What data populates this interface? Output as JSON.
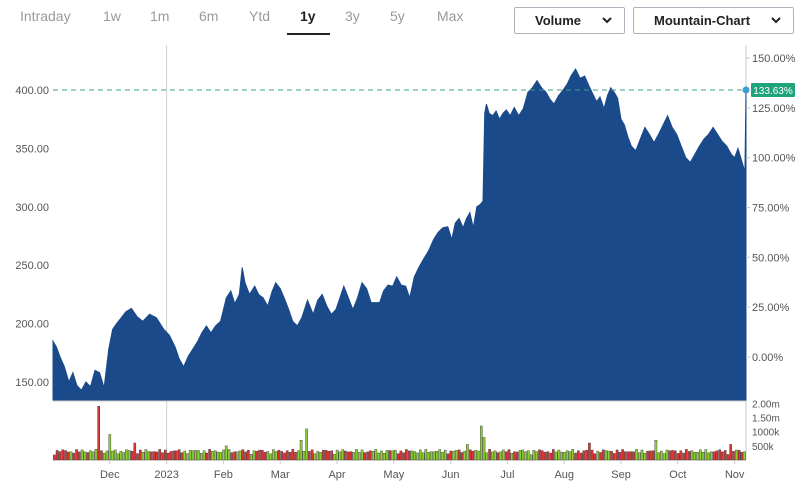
{
  "tabs": [
    {
      "label": "Intraday"
    },
    {
      "label": "1w"
    },
    {
      "label": "1m"
    },
    {
      "label": "6m"
    },
    {
      "label": "Ytd"
    },
    {
      "label": "1y",
      "active": true
    },
    {
      "label": "3y"
    },
    {
      "label": "5y"
    },
    {
      "label": "Max"
    }
  ],
  "controls": {
    "volume_label": "Volume",
    "chart_type_label": "Mountain-Chart"
  },
  "colors": {
    "area": "#1a4a8a",
    "last_marker": "#1fa37a",
    "volume_up": "#8ccf33",
    "volume_down": "#d93434",
    "dashed": "#3aa387"
  },
  "chart_data": {
    "type": "area",
    "title": "",
    "xlabel": "",
    "ylabel": "",
    "x_tick_labels": [
      "Dec",
      "2023",
      "Feb",
      "Mar",
      "Apr",
      "May",
      "Jun",
      "Jul",
      "Aug",
      "Sep",
      "Oct",
      "Nov"
    ],
    "x_tick_months": [
      1,
      2,
      3,
      4,
      5,
      6,
      7,
      8,
      9,
      10,
      11,
      12
    ],
    "x_range_months": [
      0,
      12.2
    ],
    "y_ticks": [
      "150.00",
      "200.00",
      "250.00",
      "300.00",
      "350.00",
      "400.00"
    ],
    "y_tick_values": [
      150,
      200,
      250,
      300,
      350,
      400
    ],
    "ylim": [
      135,
      430
    ],
    "pct_ticks": [
      "0.00%",
      "25.00%",
      "50.00%",
      "75.00%",
      "100.00%",
      "125.00%",
      "150.00%"
    ],
    "pct_tick_values": [
      0,
      25,
      50,
      75,
      100,
      125,
      150
    ],
    "last_value_pct": "133.63%",
    "last_value": 400,
    "volume_ticks": [
      "500k",
      "1000k",
      "1.50m",
      "2.00m"
    ],
    "volume_tick_values": [
      500000,
      1000000,
      1500000,
      2000000
    ],
    "volume_max": 2050000,
    "series": [
      {
        "values": [
          [
            0.0,
            185
          ],
          [
            0.06,
            180
          ],
          [
            0.12,
            172
          ],
          [
            0.2,
            163
          ],
          [
            0.28,
            150
          ],
          [
            0.35,
            158
          ],
          [
            0.42,
            147
          ],
          [
            0.5,
            143
          ],
          [
            0.58,
            150
          ],
          [
            0.66,
            146
          ],
          [
            0.74,
            160
          ],
          [
            0.82,
            158
          ],
          [
            0.9,
            145
          ],
          [
            0.98,
            178
          ],
          [
            1.05,
            195
          ],
          [
            1.12,
            200
          ],
          [
            1.2,
            205
          ],
          [
            1.28,
            210
          ],
          [
            1.38,
            213
          ],
          [
            1.48,
            206
          ],
          [
            1.58,
            202
          ],
          [
            1.7,
            208
          ],
          [
            1.82,
            205
          ],
          [
            1.95,
            195
          ],
          [
            2.05,
            190
          ],
          [
            2.15,
            180
          ],
          [
            2.22,
            170
          ],
          [
            2.3,
            163
          ],
          [
            2.38,
            172
          ],
          [
            2.46,
            178
          ],
          [
            2.55,
            185
          ],
          [
            2.62,
            192
          ],
          [
            2.7,
            198
          ],
          [
            2.78,
            192
          ],
          [
            2.86,
            198
          ],
          [
            2.95,
            202
          ],
          [
            3.05,
            222
          ],
          [
            3.13,
            228
          ],
          [
            3.2,
            217
          ],
          [
            3.28,
            225
          ],
          [
            3.33,
            248
          ],
          [
            3.38,
            235
          ],
          [
            3.46,
            225
          ],
          [
            3.55,
            232
          ],
          [
            3.62,
            225
          ],
          [
            3.7,
            222
          ],
          [
            3.78,
            215
          ],
          [
            3.86,
            228
          ],
          [
            3.92,
            235
          ],
          [
            4.0,
            230
          ],
          [
            4.07,
            222
          ],
          [
            4.15,
            212
          ],
          [
            4.22,
            202
          ],
          [
            4.3,
            198
          ],
          [
            4.38,
            205
          ],
          [
            4.48,
            220
          ],
          [
            4.58,
            208
          ],
          [
            4.66,
            220
          ],
          [
            4.74,
            225
          ],
          [
            4.82,
            215
          ],
          [
            4.9,
            208
          ],
          [
            4.98,
            212
          ],
          [
            5.05,
            222
          ],
          [
            5.12,
            232
          ],
          [
            5.2,
            222
          ],
          [
            5.28,
            212
          ],
          [
            5.36,
            222
          ],
          [
            5.44,
            235
          ],
          [
            5.52,
            230
          ],
          [
            5.6,
            218
          ],
          [
            5.68,
            218
          ],
          [
            5.75,
            218
          ],
          [
            5.82,
            228
          ],
          [
            5.9,
            233
          ],
          [
            5.98,
            232
          ],
          [
            6.05,
            240
          ],
          [
            6.13,
            233
          ],
          [
            6.21,
            232
          ],
          [
            6.28,
            222
          ],
          [
            6.36,
            240
          ],
          [
            6.44,
            248
          ],
          [
            6.52,
            255
          ],
          [
            6.62,
            263
          ],
          [
            6.7,
            272
          ],
          [
            6.78,
            278
          ],
          [
            6.86,
            282
          ],
          [
            6.95,
            283
          ],
          [
            7.02,
            272
          ],
          [
            7.08,
            286
          ],
          [
            7.15,
            290
          ],
          [
            7.22,
            282
          ],
          [
            7.28,
            290
          ],
          [
            7.34,
            295
          ],
          [
            7.4,
            282
          ],
          [
            7.46,
            300
          ],
          [
            7.52,
            302
          ],
          [
            7.57,
            305
          ],
          [
            7.6,
            380
          ],
          [
            7.63,
            388
          ],
          [
            7.68,
            380
          ],
          [
            7.74,
            378
          ],
          [
            7.8,
            382
          ],
          [
            7.86,
            375
          ],
          [
            7.92,
            380
          ],
          [
            7.98,
            383
          ],
          [
            8.05,
            378
          ],
          [
            8.12,
            385
          ],
          [
            8.2,
            378
          ],
          [
            8.28,
            384
          ],
          [
            8.36,
            398
          ],
          [
            8.44,
            402
          ],
          [
            8.52,
            408
          ],
          [
            8.6,
            402
          ],
          [
            8.68,
            398
          ],
          [
            8.75,
            392
          ],
          [
            8.82,
            388
          ],
          [
            8.9,
            395
          ],
          [
            8.98,
            400
          ],
          [
            9.05,
            405
          ],
          [
            9.12,
            412
          ],
          [
            9.2,
            418
          ],
          [
            9.28,
            410
          ],
          [
            9.36,
            412
          ],
          [
            9.43,
            404
          ],
          [
            9.5,
            397
          ],
          [
            9.57,
            390
          ],
          [
            9.63,
            394
          ],
          [
            9.7,
            384
          ],
          [
            9.76,
            395
          ],
          [
            9.82,
            402
          ],
          [
            9.88,
            398
          ],
          [
            9.94,
            393
          ],
          [
            10.0,
            375
          ],
          [
            10.06,
            370
          ],
          [
            10.12,
            360
          ],
          [
            10.18,
            352
          ],
          [
            10.26,
            348
          ],
          [
            10.34,
            358
          ],
          [
            10.42,
            368
          ],
          [
            10.5,
            362
          ],
          [
            10.58,
            355
          ],
          [
            10.66,
            362
          ],
          [
            10.74,
            370
          ],
          [
            10.82,
            378
          ],
          [
            10.9,
            368
          ],
          [
            10.98,
            362
          ],
          [
            11.06,
            352
          ],
          [
            11.14,
            342
          ],
          [
            11.22,
            338
          ],
          [
            11.3,
            345
          ],
          [
            11.38,
            352
          ],
          [
            11.46,
            358
          ],
          [
            11.54,
            362
          ],
          [
            11.62,
            368
          ],
          [
            11.7,
            362
          ],
          [
            11.78,
            356
          ],
          [
            11.86,
            352
          ],
          [
            11.94,
            345
          ],
          [
            12.0,
            342
          ],
          [
            12.06,
            350
          ],
          [
            12.12,
            340
          ],
          [
            12.18,
            330
          ],
          [
            12.2,
            400
          ]
        ]
      }
    ]
  }
}
